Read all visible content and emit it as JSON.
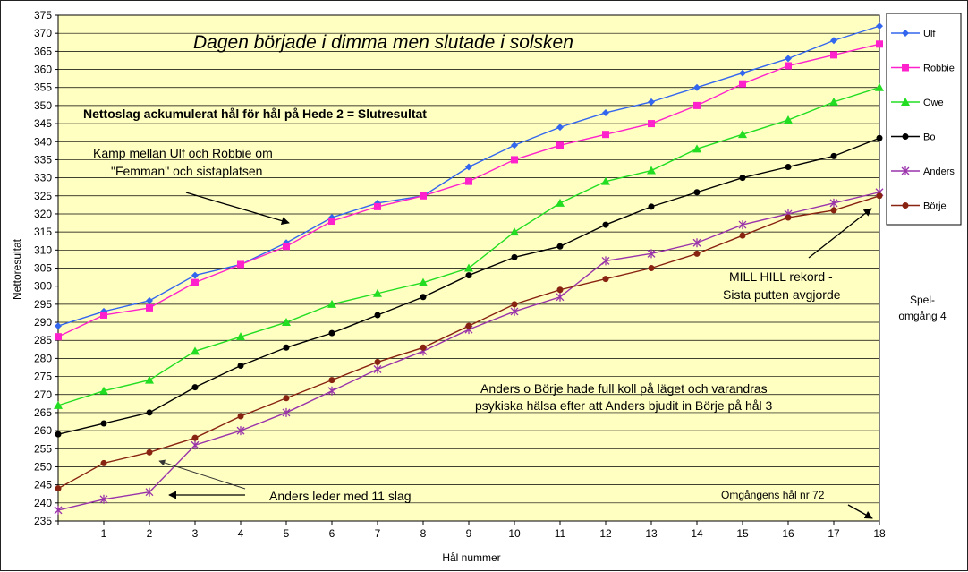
{
  "chart_data": {
    "type": "line",
    "title": "Dagen började i dimma men slutade i solsken",
    "subtitle": "Nettoslag ackumulerat hål för hål på Hede 2 = Slutresultat",
    "xlabel": "Hål nummer",
    "ylabel": "Nettoresultat",
    "x": [
      0,
      1,
      2,
      3,
      4,
      5,
      6,
      7,
      8,
      9,
      10,
      11,
      12,
      13,
      14,
      15,
      16,
      17,
      18
    ],
    "x_tick_labels": [
      "1",
      "2",
      "3",
      "4",
      "5",
      "6",
      "7",
      "8",
      "9",
      "10",
      "11",
      "12",
      "13",
      "14",
      "15",
      "16",
      "17",
      "18"
    ],
    "ylim": [
      235,
      375
    ],
    "ytick_step": 5,
    "grid": "horizontal",
    "legend_position": "right",
    "series": [
      {
        "name": "Ulf",
        "color": "#3366ee",
        "marker": "diamond",
        "values": [
          289,
          293,
          296,
          303,
          306,
          312,
          319,
          323,
          325,
          333,
          339,
          344,
          348,
          351,
          355,
          359,
          363,
          368,
          372
        ]
      },
      {
        "name": "Robbie",
        "color": "#ff22cc",
        "marker": "square",
        "values": [
          286,
          292,
          294,
          301,
          306,
          311,
          318,
          322,
          325,
          329,
          335,
          339,
          342,
          345,
          350,
          356,
          361,
          364,
          367
        ]
      },
      {
        "name": "Owe",
        "color": "#22dd22",
        "marker": "triangle",
        "values": [
          267,
          271,
          274,
          282,
          286,
          290,
          295,
          298,
          301,
          305,
          315,
          323,
          329,
          332,
          338,
          342,
          346,
          351,
          355
        ]
      },
      {
        "name": "Bo",
        "color": "#000000",
        "marker": "circle",
        "values": [
          259,
          262,
          265,
          272,
          278,
          283,
          287,
          292,
          297,
          303,
          308,
          311,
          317,
          322,
          326,
          330,
          333,
          336,
          341
        ]
      },
      {
        "name": "Anders",
        "color": "#9933aa",
        "marker": "star",
        "values": [
          238,
          241,
          243,
          256,
          260,
          265,
          271,
          277,
          282,
          288,
          293,
          297,
          307,
          309,
          312,
          317,
          320,
          323,
          326
        ]
      },
      {
        "name": "Börje",
        "color": "#882211",
        "marker": "circle",
        "values": [
          244,
          251,
          254,
          258,
          264,
          269,
          274,
          279,
          283,
          289,
          295,
          299,
          302,
          305,
          309,
          314,
          319,
          321,
          325
        ]
      }
    ],
    "annotations": [
      {
        "id": "kamp",
        "lines": [
          "Kamp mellan Ulf och Robbie om",
          "\"Femman\" och sistaplatsen"
        ]
      },
      {
        "id": "millhill",
        "lines": [
          "MILL HILL rekord -",
          "Sista putten avgjorde"
        ]
      },
      {
        "id": "anders_borje",
        "lines": [
          "Anders o Börje hade full koll på läget och varandras",
          "psykiska hälsa efter att Anders bjudit in Börje på hål 3"
        ]
      },
      {
        "id": "leder",
        "lines": [
          "Anders leder med 11 slag"
        ]
      },
      {
        "id": "omgang",
        "lines": [
          "Omgångens hål nr 72"
        ]
      },
      {
        "id": "spel",
        "lines": [
          "Spel-",
          "omgång 4"
        ]
      }
    ]
  }
}
